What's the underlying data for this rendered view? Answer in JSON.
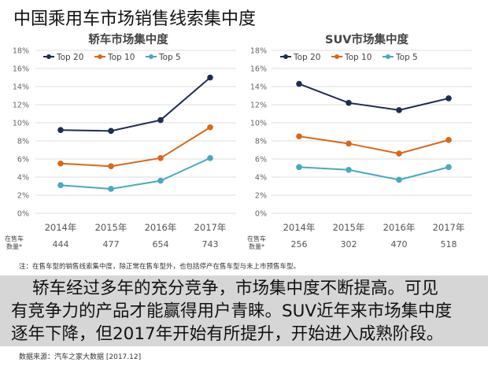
{
  "title": "中国乘用车市场销售线索集中度",
  "colors": {
    "top20": "#1f2d4e",
    "top10": "#d8681a",
    "top5": "#4aa9bd",
    "grid": "#dcdcdc",
    "axis_text": "#666666",
    "summary_bg": "#d6d6d6"
  },
  "chart_data": [
    {
      "type": "line",
      "title": "轿车市场集中度",
      "categories": [
        "2014年",
        "2015年",
        "2016年",
        "2017年"
      ],
      "yticks": [
        "0%",
        "2%",
        "4%",
        "6%",
        "8%",
        "10%",
        "12%",
        "14%",
        "16%",
        "18%"
      ],
      "ylim": [
        0,
        18
      ],
      "grid": true,
      "legend": "top-left",
      "series": [
        {
          "name": "Top 20",
          "values": [
            9.2,
            9.1,
            10.3,
            15.0
          ]
        },
        {
          "name": "Top 10",
          "values": [
            5.5,
            5.2,
            6.1,
            9.5
          ]
        },
        {
          "name": "Top 5",
          "values": [
            3.1,
            2.7,
            3.6,
            6.1
          ]
        }
      ],
      "count_label": [
        "在售车",
        "数量*"
      ],
      "counts": [
        "444",
        "477",
        "654",
        "743"
      ]
    },
    {
      "type": "line",
      "title": "SUV市场集中度",
      "categories": [
        "2014年",
        "2015年",
        "2016年",
        "2017年"
      ],
      "yticks": [
        "0%",
        "2%",
        "4%",
        "6%",
        "8%",
        "10%",
        "12%",
        "14%",
        "16%",
        "18%"
      ],
      "ylim": [
        0,
        18
      ],
      "grid": true,
      "legend": "top-left",
      "series": [
        {
          "name": "Top 20",
          "values": [
            14.3,
            12.2,
            11.4,
            12.7
          ]
        },
        {
          "name": "Top 10",
          "values": [
            8.5,
            7.7,
            6.6,
            8.1
          ]
        },
        {
          "name": "Top 5",
          "values": [
            5.1,
            4.8,
            3.7,
            5.1
          ]
        }
      ],
      "count_label": [
        "在售车",
        "数量*"
      ],
      "counts": [
        "256",
        "302",
        "470",
        "518"
      ]
    }
  ],
  "note": "注：在售车型的销售线索集中度，除正常在售车型外，也包括停产在售车型与未上市预售车型。",
  "summary": {
    "line1": "轿车经过多年的充分竞争，市场集中度不断提高。可见",
    "line2": "有竞争力的产品才能赢得用户青睐。SUV近年来市场集中度",
    "line3": "逐年下降，但2017年开始有所提升，开始进入成熟阶段。"
  },
  "source": "数据来源：汽车之家大数据 [2017.12]"
}
